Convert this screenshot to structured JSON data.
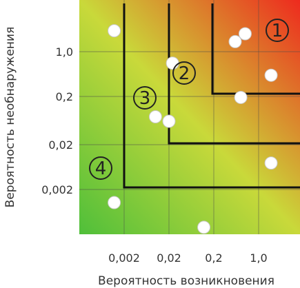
{
  "chart_data": {
    "type": "scatter",
    "xlabel": "Вероятность возникновения",
    "ylabel": "Вероятность необнаружения",
    "x_tick_labels": [
      "0,002",
      "0,02",
      "0,2",
      "1,0"
    ],
    "y_tick_labels": [
      "1,0",
      "0,2",
      "0,02",
      "0,002"
    ],
    "grid": true,
    "zones": [
      {
        "label": "1"
      },
      {
        "label": "2"
      },
      {
        "label": "3"
      },
      {
        "label": "4"
      }
    ],
    "points": [
      {
        "x": 0.0006,
        "y": 3.5
      },
      {
        "x": 0.3,
        "y": 2.0
      },
      {
        "x": 0.5,
        "y": 3.0
      },
      {
        "x": 0.012,
        "y": 0.6
      },
      {
        "x": 2.0,
        "y": 0.35
      },
      {
        "x": 0.4,
        "y": 0.13
      },
      {
        "x": 0.005,
        "y": 0.055
      },
      {
        "x": 0.01,
        "y": 0.045
      },
      {
        "x": 2.0,
        "y": 0.007
      },
      {
        "x": 0.0006,
        "y": 0.0012
      },
      {
        "x": 0.06,
        "y": 0.0004
      }
    ],
    "colors": {
      "low": "#4fbf3a",
      "mid": "#c9d93a",
      "high": "#ee2a1e"
    }
  }
}
